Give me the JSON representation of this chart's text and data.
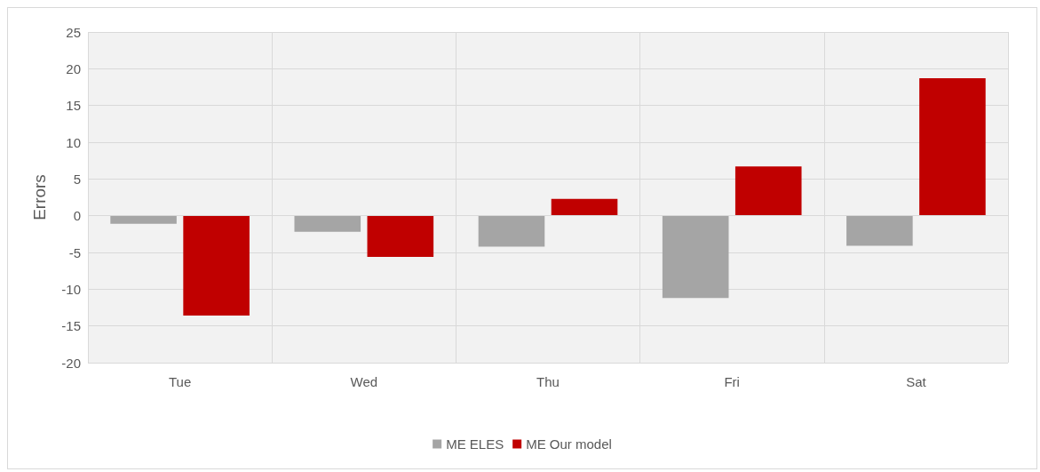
{
  "chart_data": {
    "type": "bar",
    "ylabel": "Errors",
    "categories": [
      "Tue",
      "Wed",
      "Thu",
      "Fri",
      "Sat"
    ],
    "series": [
      {
        "name": "ME ELES",
        "color": "#a5a5a5",
        "values": [
          -1.1,
          -2.2,
          -4.2,
          -11.2,
          -4.1
        ]
      },
      {
        "name": "ME Our model",
        "color": "#c00000",
        "values": [
          -13.6,
          -5.6,
          2.3,
          6.7,
          18.7
        ]
      }
    ],
    "ylim": [
      -20,
      25
    ],
    "yticks": [
      -20,
      -15,
      -10,
      -5,
      0,
      5,
      10,
      15,
      20,
      25
    ],
    "grid": true,
    "legend": "bottom"
  }
}
